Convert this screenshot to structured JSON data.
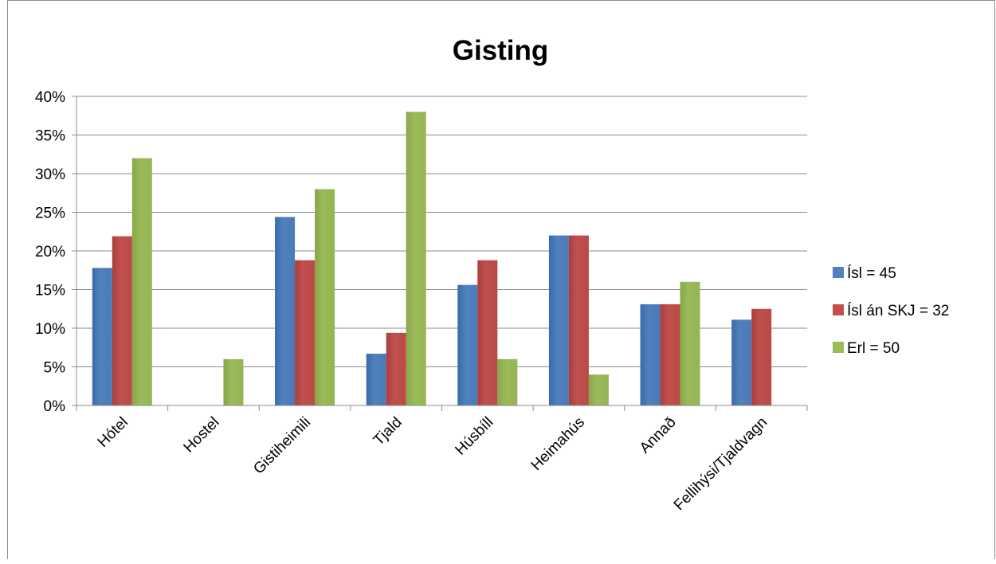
{
  "chart_data": {
    "type": "bar",
    "title": "Gisting",
    "categories": [
      "Hótel",
      "Hostel",
      "Gistiheimili",
      "Tjald",
      "Húsbíll",
      "Heimahús",
      "Annað",
      "Fellihýsi/Tjaldvagn"
    ],
    "series": [
      {
        "name": "Ísl = 45",
        "color": "#4f81bd",
        "values": [
          17.8,
          0,
          24.4,
          6.7,
          15.6,
          22.0,
          13.1,
          11.1
        ]
      },
      {
        "name": "Ísl án SKJ = 32",
        "color": "#c0504d",
        "values": [
          21.9,
          0,
          18.8,
          9.4,
          18.8,
          22.0,
          13.1,
          12.5
        ]
      },
      {
        "name": "Erl = 50",
        "color": "#9bbb59",
        "values": [
          32.0,
          6.0,
          28.0,
          38.0,
          6.0,
          4.0,
          16.0,
          0
        ]
      }
    ],
    "yticks": [
      "0%",
      "5%",
      "10%",
      "15%",
      "20%",
      "25%",
      "30%",
      "35%",
      "40%"
    ],
    "ylim": [
      0,
      40
    ],
    "grid": true,
    "legend": "right"
  }
}
